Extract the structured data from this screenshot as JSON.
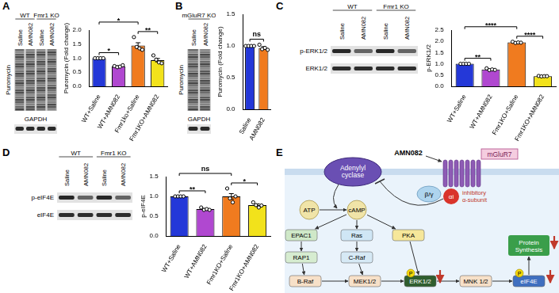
{
  "chart_data": [
    {
      "panel": "A",
      "type": "bar",
      "ylabel": "Puromycin (Fold change)",
      "categories": [
        "WT+Saline",
        "WT+AMN082",
        "Fmr1ko+Saline",
        "Fmr1KO+AMN082"
      ],
      "values": [
        1.0,
        0.71,
        1.45,
        0.93
      ],
      "errors": [
        0,
        0.02,
        0.1,
        0.06
      ],
      "points": [
        [
          1,
          1,
          1,
          1
        ],
        [
          0.72,
          0.68,
          0.7,
          0.75
        ],
        [
          1.75,
          1.4,
          1.35,
          1.3
        ],
        [
          1.1,
          0.95,
          0.85,
          0.82
        ]
      ],
      "colors": [
        "#2438d8",
        "#b048d0",
        "#f07b1f",
        "#f2e21b"
      ],
      "ylim": [
        0,
        2
      ],
      "yticks": [
        {
          "value": 0,
          "label": "0.0"
        },
        {
          "value": 0.5,
          "label": "0.5"
        },
        {
          "value": 1,
          "label": "1.0"
        },
        {
          "value": 1.5,
          "label": "1.5"
        },
        {
          "value": 2,
          "label": "2.0"
        }
      ],
      "grid": false,
      "significance": [
        {
          "pair": [
            0,
            1
          ],
          "label": "*"
        },
        {
          "pair": [
            0,
            2
          ],
          "label": "*"
        },
        {
          "pair": [
            2,
            3
          ],
          "label": "**"
        }
      ]
    },
    {
      "panel": "B",
      "type": "bar",
      "ylabel": "Puromycin (Fold change)",
      "categories": [
        "Saline",
        "AMN082"
      ],
      "values": [
        1.0,
        0.97
      ],
      "errors": [
        0,
        0.02
      ],
      "points": [
        [
          1,
          1,
          1,
          1
        ],
        [
          1.02,
          0.95,
          0.97,
          0.94
        ]
      ],
      "colors": [
        "#2438d8",
        "#f07b1f"
      ],
      "ylim": [
        0,
        1.5
      ],
      "yticks": [
        {
          "value": 0,
          "label": "0.0"
        },
        {
          "value": 0.5,
          "label": "0.5"
        },
        {
          "value": 1,
          "label": "1.0"
        },
        {
          "value": 1.5,
          "label": "1.5"
        }
      ],
      "grid": false,
      "significance": [
        {
          "pair": [
            0,
            1
          ],
          "label": "ns"
        }
      ]
    },
    {
      "panel": "C",
      "type": "bar",
      "ylabel": "p-ERK1/2",
      "categories": [
        "WT+Saline",
        "WT+AMN082",
        "Fmr1KO+Saline",
        "Fmr1KO+AMN082"
      ],
      "values": [
        1.0,
        0.75,
        1.95,
        0.45
      ],
      "errors": [
        0,
        0.02,
        0.01,
        0.005
      ],
      "points": [
        [
          1,
          1,
          1,
          1
        ],
        [
          0.8,
          0.72,
          0.75,
          0.73
        ],
        [
          1.98,
          1.93,
          1.95,
          1.94
        ],
        [
          0.46,
          0.44,
          0.45,
          0.45
        ]
      ],
      "colors": [
        "#2438d8",
        "#b048d0",
        "#f07b1f",
        "#f2e21b"
      ],
      "ylim": [
        0,
        2.5
      ],
      "yticks": [
        {
          "value": 0,
          "label": "0.0"
        },
        {
          "value": 0.5,
          "label": "0.5"
        },
        {
          "value": 1,
          "label": "1.0"
        },
        {
          "value": 1.5,
          "label": "1.5"
        },
        {
          "value": 2,
          "label": "2.0"
        },
        {
          "value": 2.5,
          "label": "2.5"
        }
      ],
      "grid": false,
      "significance": [
        {
          "pair": [
            0,
            1
          ],
          "label": "**"
        },
        {
          "pair": [
            0,
            2
          ],
          "label": "****"
        },
        {
          "pair": [
            2,
            3
          ],
          "label": "****"
        }
      ]
    },
    {
      "panel": "D",
      "type": "bar",
      "ylabel": "p-eIF4E",
      "categories": [
        "WT+Saline",
        "WT+AMN082",
        "Fmr1KO+Saline",
        "Fmr1KO+AMN082"
      ],
      "values": [
        1.0,
        0.68,
        1.0,
        0.78
      ],
      "errors": [
        0,
        0.015,
        0.07,
        0.03
      ],
      "points": [
        [
          1,
          1,
          1,
          1
        ],
        [
          0.72,
          0.66,
          0.68,
          0.66
        ],
        [
          1.2,
          0.95,
          0.85,
          1.0
        ],
        [
          0.85,
          0.78,
          0.72,
          0.77
        ]
      ],
      "colors": [
        "#2438d8",
        "#b048d0",
        "#f07b1f",
        "#f2e21b"
      ],
      "ylim": [
        0,
        1.5
      ],
      "yticks": [
        {
          "value": 0,
          "label": "0.0"
        },
        {
          "value": 0.5,
          "label": "0.5"
        },
        {
          "value": 1,
          "label": "1.0"
        },
        {
          "value": 1.5,
          "label": "1.5"
        }
      ],
      "grid": false,
      "significance": [
        {
          "pair": [
            0,
            1
          ],
          "label": "**"
        },
        {
          "pair": [
            0,
            2
          ],
          "label": "ns"
        },
        {
          "pair": [
            2,
            3
          ],
          "label": "*"
        }
      ]
    }
  ],
  "blots": [
    {
      "panel": "A",
      "groups": [
        {
          "label": "WT",
          "lanes": [
            "Saline",
            "AMN082"
          ]
        },
        {
          "label": "Fmr1 KO",
          "lanes": [
            "Saline",
            "AMN082"
          ]
        }
      ],
      "rows": [
        "Puromycin",
        "GAPDH"
      ]
    },
    {
      "panel": "B",
      "groups": [
        {
          "label": "mGluR7 KO",
          "lanes": [
            "Saline",
            "AMN082"
          ]
        }
      ],
      "rows": [
        "Puromycin",
        "GAPDH"
      ]
    },
    {
      "panel": "C",
      "groups": [
        {
          "label": "WT",
          "lanes": [
            "Saline",
            "AMN082"
          ]
        },
        {
          "label": "Fmr1 KO",
          "lanes": [
            "Saline",
            "AMN082"
          ]
        }
      ],
      "rows": [
        "p-ERK1/2",
        "ERK1/2"
      ]
    },
    {
      "panel": "D",
      "groups": [
        {
          "label": "WT",
          "lanes": [
            "Saline",
            "AMN082"
          ]
        },
        {
          "label": "Fmr1 KO",
          "lanes": [
            "Saline",
            "AMN082"
          ]
        }
      ],
      "rows": [
        "p-eIF4E",
        "eIF4E"
      ]
    }
  ],
  "diagram": {
    "panel": "E",
    "ligand": "AMN082",
    "receptor": "mGluR7",
    "enzyme": "Adenylyl cyclase",
    "beta_gamma": "β/γ",
    "alpha": "αi",
    "alpha_note": "inhibitory α-subunit",
    "nodes": [
      "ATP",
      "cAMP",
      "EPAC1",
      "Ras",
      "PKA",
      "RAP1",
      "C-Raf",
      "B-Raf",
      "MEK1/2",
      "ERK1/2",
      "MNK 1/2",
      "eIF4E"
    ],
    "output": "Protein Synthesis",
    "phospho": "P"
  }
}
